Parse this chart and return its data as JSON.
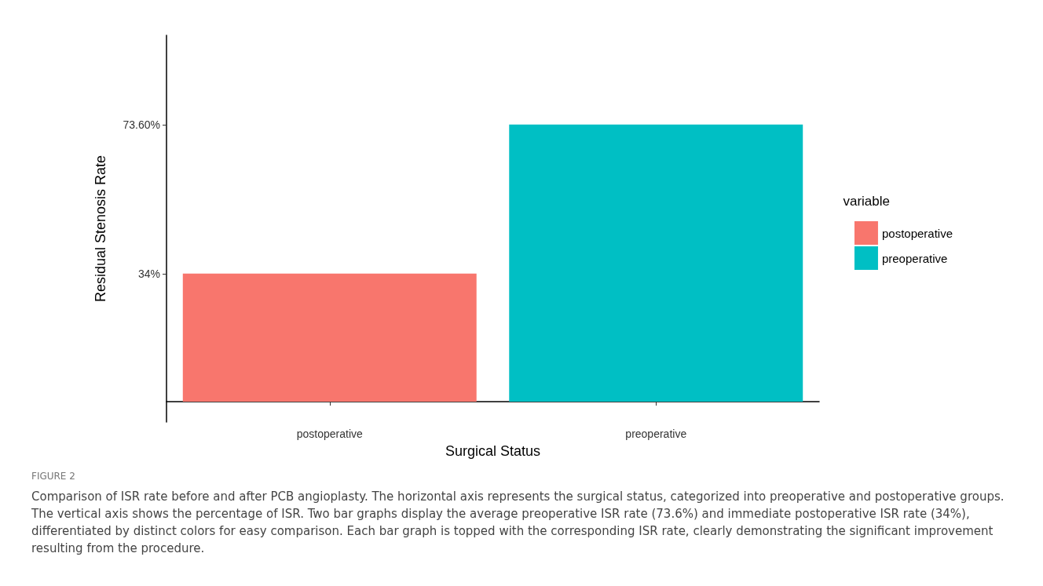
{
  "chart_data": {
    "type": "bar",
    "xlabel": "Surgical Status",
    "ylabel": "Residual Stenosis Rate",
    "legend_title": "variable",
    "categories": [
      "postoperative",
      "preoperative"
    ],
    "series": [
      {
        "name": "postoperative",
        "color": "#f8766d",
        "values": [
          34,
          null
        ]
      },
      {
        "name": "preoperative",
        "color": "#00bfc4",
        "values": [
          null,
          73.6
        ]
      }
    ],
    "ylim": [
      -5.4,
      97.3
    ],
    "yticks": [
      {
        "value": 34,
        "label": "34%"
      },
      {
        "value": 73.6,
        "label": "73.60%"
      }
    ],
    "grid": false,
    "legend": "right",
    "annotations": [
      "FIGURE 2",
      "Comparison of ISR rate before and after PCB angioplasty. The horizontal axis represents the surgical status, categorized into preoperative and postoperative groups. The vertical axis shows the percentage of ISR. Two bar graphs display the average preoperative ISR rate (73.6%) and immediate postoperative ISR rate (34%), differentiated by distinct colors for easy comparison. Each bar graph is topped with the corresponding ISR rate, clearly demonstrating the significant improvement resulting from the procedure."
    ]
  }
}
